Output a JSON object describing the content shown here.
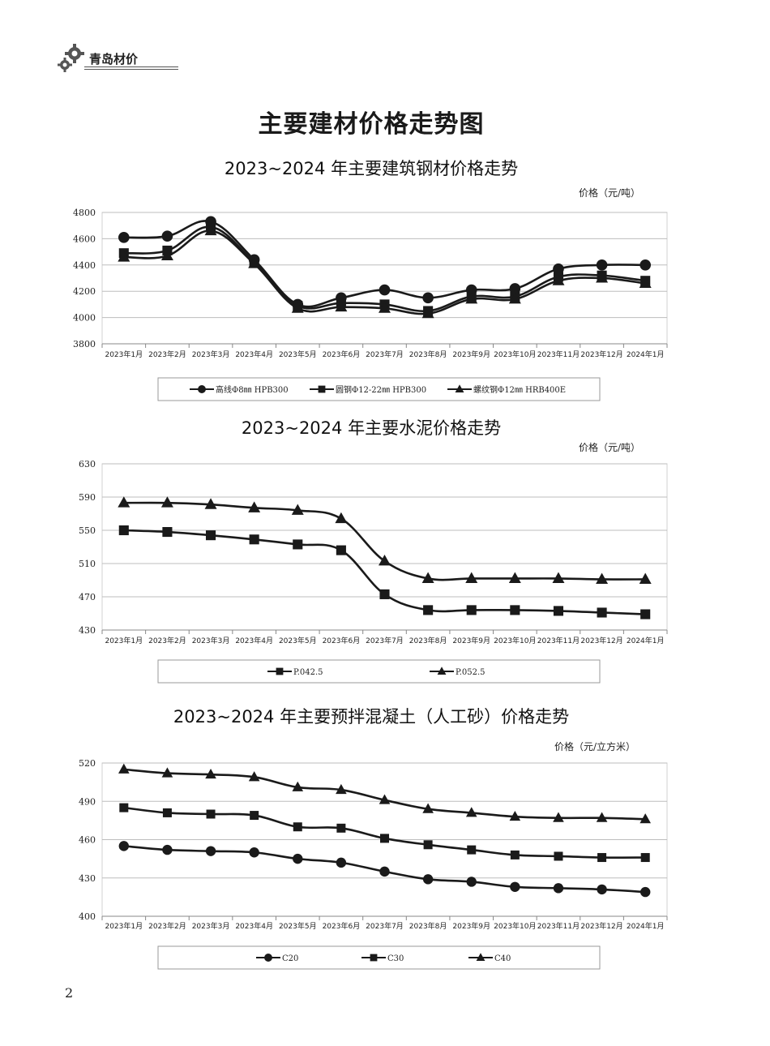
{
  "header": {
    "brand": "青岛材价",
    "logo_icon": "gear-icon"
  },
  "page": {
    "title": "主要建材价格走势图",
    "page_number": "2"
  },
  "colors": {
    "line": "#1a1a1a",
    "grid": "#bdbdbd",
    "axis": "#888888"
  },
  "chart_data": [
    {
      "type": "line",
      "title": "2023~2024 年主要建筑钢材价格走势",
      "unit": "价格（元/吨）",
      "categories": [
        "2023年1月",
        "2023年2月",
        "2023年3月",
        "2023年4月",
        "2023年5月",
        "2023年6月",
        "2023年7月",
        "2023年8月",
        "2023年9月",
        "2023年10月",
        "2023年11月",
        "2023年12月",
        "2024年1月"
      ],
      "yticks": [
        "4800",
        "4600",
        "4400",
        "4200",
        "4000",
        "3800"
      ],
      "ylim": [
        3800,
        4800
      ],
      "grid": true,
      "legend_position": "bottom",
      "series": [
        {
          "name": "高线Φ8㎜ HPB300",
          "marker": "circle",
          "values": [
            4610,
            4620,
            4730,
            4440,
            4100,
            4150,
            4210,
            4150,
            4210,
            4220,
            4370,
            4400,
            4400
          ]
        },
        {
          "name": "圆钢Φ12-22㎜ HPB300",
          "marker": "square",
          "values": [
            4490,
            4510,
            4690,
            4420,
            4090,
            4110,
            4100,
            4050,
            4160,
            4160,
            4310,
            4320,
            4280
          ]
        },
        {
          "name": "螺纹钢Φ12㎜ HRB400E",
          "marker": "triangle",
          "values": [
            4460,
            4470,
            4660,
            4410,
            4070,
            4080,
            4070,
            4030,
            4140,
            4140,
            4280,
            4300,
            4260
          ]
        }
      ]
    },
    {
      "type": "line",
      "title": "2023~2024 年主要水泥价格走势",
      "unit": "价格（元/吨）",
      "categories": [
        "2023年1月",
        "2023年2月",
        "2023年3月",
        "2023年4月",
        "2023年5月",
        "2023年6月",
        "2023年7月",
        "2023年8月",
        "2023年9月",
        "2023年10月",
        "2023年11月",
        "2023年12月",
        "2024年1月"
      ],
      "yticks": [
        "630",
        "590",
        "550",
        "510",
        "470",
        "430"
      ],
      "ylim": [
        430,
        630
      ],
      "grid": true,
      "legend_position": "bottom",
      "series": [
        {
          "name": "P.042.5",
          "marker": "square",
          "values": [
            550,
            548,
            544,
            539,
            533,
            526,
            473,
            454,
            454,
            454,
            453,
            451,
            449
          ]
        },
        {
          "name": "P.052.5",
          "marker": "triangle",
          "values": [
            583,
            583,
            581,
            577,
            574,
            564,
            513,
            492,
            492,
            492,
            492,
            491,
            491
          ]
        }
      ]
    },
    {
      "type": "line",
      "title": "2023~2024 年主要预拌混凝土（人工砂）价格走势",
      "unit": "价格（元/立方米）",
      "categories": [
        "2023年1月",
        "2023年2月",
        "2023年3月",
        "2023年4月",
        "2023年5月",
        "2023年6月",
        "2023年7月",
        "2023年8月",
        "2023年9月",
        "2023年10月",
        "2023年11月",
        "2023年12月",
        "2024年1月"
      ],
      "yticks": [
        "520",
        "490",
        "460",
        "430",
        "400"
      ],
      "ylim": [
        400,
        520
      ],
      "grid": true,
      "legend_position": "bottom",
      "series": [
        {
          "name": "C20",
          "marker": "circle",
          "values": [
            455,
            452,
            451,
            450,
            445,
            442,
            435,
            429,
            427,
            423,
            422,
            421,
            419
          ]
        },
        {
          "name": "C30",
          "marker": "square",
          "values": [
            485,
            481,
            480,
            479,
            470,
            469,
            461,
            456,
            452,
            448,
            447,
            446,
            446
          ]
        },
        {
          "name": "C40",
          "marker": "triangle",
          "values": [
            515,
            512,
            511,
            509,
            501,
            499,
            491,
            484,
            481,
            478,
            477,
            477,
            476
          ]
        }
      ]
    }
  ]
}
